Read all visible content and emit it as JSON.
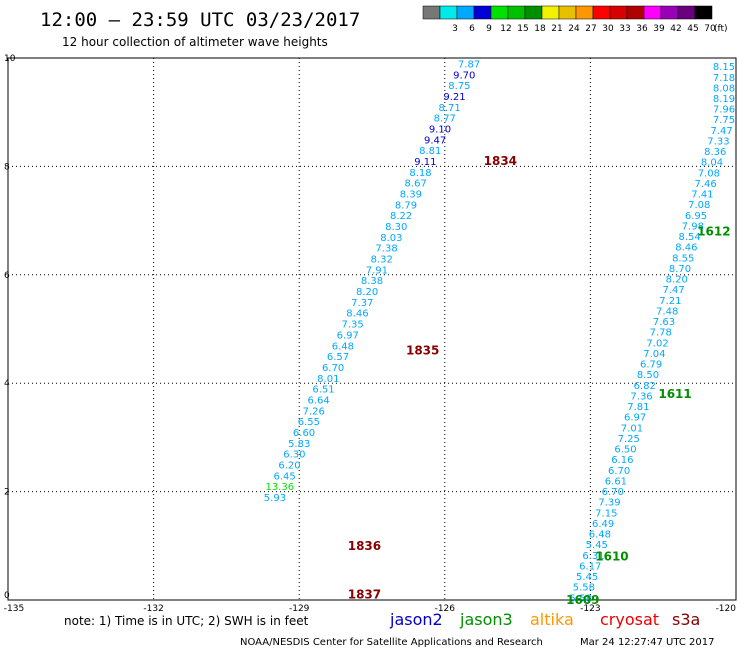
{
  "header": {
    "title": "12:00 – 23:59 UTC 03/23/2017",
    "subtitle": "12 hour collection of altimeter wave heights"
  },
  "colorbar": {
    "unit": "(ft)",
    "bins": [
      {
        "label": "",
        "color": "#777777"
      },
      {
        "label": "3",
        "color": "#00eaea"
      },
      {
        "label": "6",
        "color": "#00a8ff"
      },
      {
        "label": "9",
        "color": "#0000d8"
      },
      {
        "label": "12",
        "color": "#00e100"
      },
      {
        "label": "15",
        "color": "#00c000"
      },
      {
        "label": "18",
        "color": "#008f00"
      },
      {
        "label": "21",
        "color": "#f2f200"
      },
      {
        "label": "24",
        "color": "#e8c000"
      },
      {
        "label": "27",
        "color": "#ff9800"
      },
      {
        "label": "30",
        "color": "#ff0000"
      },
      {
        "label": "33",
        "color": "#d80000"
      },
      {
        "label": "36",
        "color": "#b00000"
      },
      {
        "label": "39",
        "color": "#ff00ff"
      },
      {
        "label": "42",
        "color": "#9900b8"
      },
      {
        "label": "45",
        "color": "#6b007f"
      },
      {
        "label": "70",
        "color": "#000000"
      }
    ]
  },
  "footer": {
    "note": "note:  1) Time is in UTC;  2) SWH is in feet",
    "satellites": [
      {
        "name": "jason2",
        "color": "#0000cc"
      },
      {
        "name": "jason3",
        "color": "#008f00"
      },
      {
        "name": "altika",
        "color": "#ff9800"
      },
      {
        "name": "cryosat",
        "color": "#ee0000"
      },
      {
        "name": "s3a",
        "color": "#880000"
      }
    ],
    "credit": "NOAA/NESDIS Center for Satellite Applications and Research",
    "timestamp": "Mar 24 12:27:47 UTC 2017"
  },
  "chart_data": {
    "type": "scatter",
    "title": "12:00 – 23:59 UTC 03/23/2017",
    "subtitle": "12 hour collection of altimeter wave heights",
    "xlim": [
      -135,
      -120
    ],
    "ylim": [
      0,
      10
    ],
    "x_ticks": [
      "-135",
      "-132",
      "-129",
      "-126",
      "-123",
      "-120"
    ],
    "y_ticks": [
      "0",
      "2",
      "4",
      "6",
      "8",
      "10"
    ],
    "grid": true,
    "point_color": "#00a8ff",
    "point_alt_colors": {
      "high": "#0000d8",
      "low": "#00e100"
    },
    "series": [
      {
        "x": [
          -125.5,
          -125.6,
          -125.7,
          -125.8,
          -125.9,
          -126.0,
          -126.1,
          -126.2,
          -126.3,
          -126.4,
          -126.5,
          -126.6,
          -126.7,
          -126.8,
          -126.9,
          -127.0,
          -127.1,
          -127.2,
          -127.3,
          -127.4,
          -127.5,
          -127.6,
          -127.7,
          -127.8,
          -127.9,
          -128.0,
          -128.1,
          -128.2,
          -128.3,
          -128.4,
          -128.5,
          -128.6,
          -128.7,
          -128.8,
          -128.9,
          -129.0,
          -129.1,
          -129.2,
          -129.3,
          -129.4,
          -129.5
        ],
        "y": [
          9.9,
          9.7,
          9.5,
          9.3,
          9.1,
          8.9,
          8.7,
          8.5,
          8.3,
          8.1,
          7.9,
          7.7,
          7.5,
          7.3,
          7.1,
          6.9,
          6.7,
          6.5,
          6.3,
          6.1,
          5.9,
          5.7,
          5.5,
          5.3,
          5.1,
          4.9,
          4.7,
          4.5,
          4.3,
          4.1,
          3.9,
          3.7,
          3.5,
          3.3,
          3.1,
          2.9,
          2.7,
          2.5,
          2.3,
          2.1,
          1.9
        ],
        "swh": [
          "7.87",
          "9.70",
          "8.75",
          "9.21",
          "8.71",
          "8.77",
          "9.10",
          "9.47",
          "8.81",
          "9.11",
          "8.18",
          "8.67",
          "8.39",
          "8.79",
          "8.22",
          "8.30",
          "8.03",
          "7.38",
          "8.32",
          "7.91",
          "8.38",
          "8.20",
          "7.37",
          "8.46",
          "7.35",
          "6.97",
          "6.48",
          "6.57",
          "6.70",
          "8.01",
          "6.51",
          "6.64",
          "7.26",
          "6.55",
          "6.60",
          "5.83",
          "6.30",
          "6.20",
          "6.45",
          "13.36",
          "5.93"
        ]
      }
    ],
    "pass_labels": [
      {
        "text": "1834",
        "x": -125.2,
        "y": 8.1,
        "color": "#880000"
      },
      {
        "text": "1835",
        "x": -126.8,
        "y": 4.6,
        "color": "#880000"
      },
      {
        "text": "1836",
        "x": -128.0,
        "y": 1.0,
        "color": "#880000"
      },
      {
        "text": "1837",
        "x": -128.0,
        "y": 0.1,
        "color": "#880000"
      },
      {
        "text": "1612",
        "x": -120.8,
        "y": 6.8,
        "color": "#008f00"
      },
      {
        "text": "1611",
        "x": -121.6,
        "y": 3.8,
        "color": "#008f00"
      },
      {
        "text": "1610",
        "x": -122.9,
        "y": 0.8,
        "color": "#008f00"
      },
      {
        "text": "1609",
        "x": -123.5,
        "y": 0.0,
        "color": "#008f00"
      }
    ],
    "track2": {
      "swh": [
        "8.15",
        "7.18",
        "8.08",
        "8.19",
        "7.96",
        "7.75",
        "7.47",
        "7.33",
        "8.36",
        "8.04",
        "7.08",
        "7.46",
        "7.41",
        "7.08",
        "6.95",
        "7.98",
        "8.54",
        "8.46",
        "8.55",
        "8.70",
        "8.20",
        "7.47",
        "7.21",
        "7.48",
        "7.63",
        "7.78",
        "7.02",
        "7.04",
        "6.79",
        "8.50",
        "6.82",
        "7.36",
        "7.81",
        "6.97",
        "7.01",
        "7.25",
        "6.50",
        "6.16",
        "6.70",
        "6.61",
        "6.70",
        "7.39",
        "7.15",
        "6.49",
        "6.48",
        "5.45",
        "6.31",
        "6.17",
        "5.45",
        "5.58",
        "5.58"
      ]
    }
  }
}
